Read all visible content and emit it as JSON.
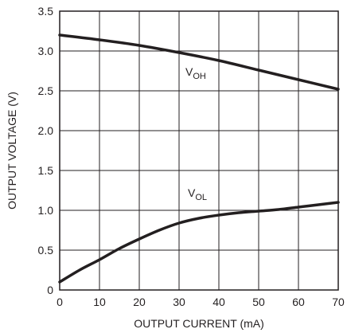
{
  "chart_data": {
    "type": "line",
    "title": "",
    "xlabel": "OUTPUT CURRENT (mA)",
    "ylabel": "OUTPUT VOLTAGE (V)",
    "xlim": [
      0,
      70
    ],
    "ylim": [
      0,
      3.5
    ],
    "grid": true,
    "x_ticks": [
      "0",
      "10",
      "20",
      "30",
      "40",
      "50",
      "60",
      "70"
    ],
    "y_ticks": [
      "0",
      "0.5",
      "1.0",
      "1.5",
      "2.0",
      "2.5",
      "3.0",
      "3.5"
    ],
    "series": [
      {
        "name": "VOH",
        "label_main": "V",
        "label_sub": "OH",
        "x": [
          0,
          10,
          20,
          30,
          40,
          50,
          60,
          70
        ],
        "y": [
          3.2,
          3.14,
          3.07,
          2.98,
          2.88,
          2.76,
          2.64,
          2.52
        ]
      },
      {
        "name": "VOL",
        "label_main": "V",
        "label_sub": "OL",
        "x": [
          0,
          5,
          10,
          15,
          20,
          25,
          30,
          35,
          40,
          45,
          50,
          55,
          60,
          65,
          70
        ],
        "y": [
          0.1,
          0.25,
          0.38,
          0.52,
          0.64,
          0.75,
          0.84,
          0.9,
          0.94,
          0.97,
          0.99,
          1.01,
          1.04,
          1.07,
          1.1
        ]
      }
    ]
  }
}
